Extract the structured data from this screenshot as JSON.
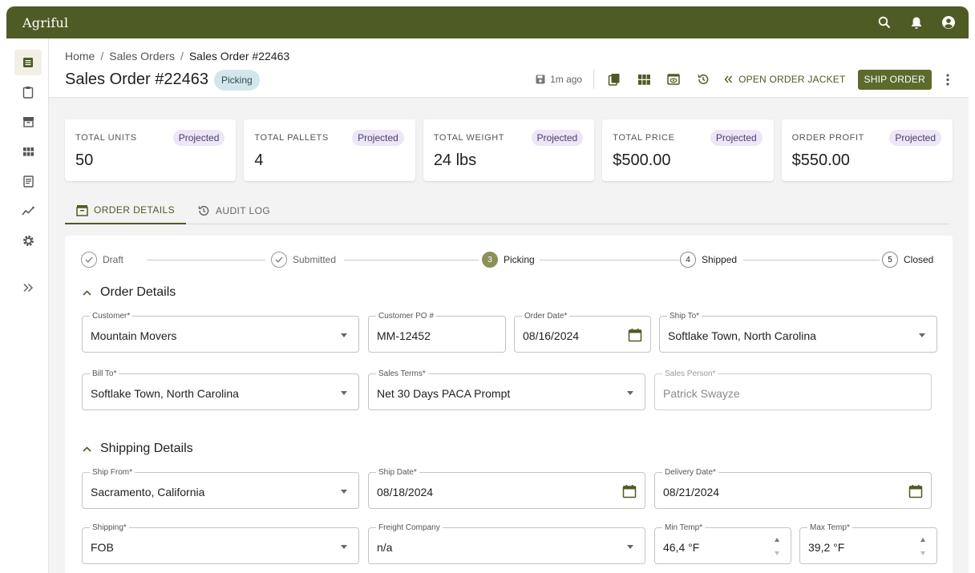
{
  "app": {
    "brand": "Agriful"
  },
  "topbar": {
    "icons": [
      "search-icon",
      "bell-icon",
      "account-icon"
    ]
  },
  "siderail": {
    "items": [
      "orders-icon",
      "clipboard-icon",
      "archive-icon",
      "grid-icon",
      "receipt-icon",
      "analytics-icon",
      "settings-icon",
      "expand-icon"
    ]
  },
  "breadcrumb": {
    "home": "Home",
    "sales_orders": "Sales Orders",
    "current": "Sales Order #22463",
    "separator": "/"
  },
  "header": {
    "title": "Sales Order #22463",
    "status": "Picking",
    "saved_text": "1m ago",
    "open_jacket_label": "OPEN ORDER JACKET",
    "ship_order_label": "SHIP ORDER"
  },
  "cards": [
    {
      "label": "TOTAL UNITS",
      "chip": "Projected",
      "value": "50"
    },
    {
      "label": "TOTAL PALLETS",
      "chip": "Projected",
      "value": "4"
    },
    {
      "label": "TOTAL WEIGHT",
      "chip": "Projected",
      "value": "24 lbs"
    },
    {
      "label": "TOTAL PRICE",
      "chip": "Projected",
      "value": "$500.00"
    },
    {
      "label": "ORDER PROFIT",
      "chip": "Projected",
      "value": "$550.00"
    }
  ],
  "tabs": {
    "order_details": "ORDER DETAILS",
    "audit_log": "AUDIT LOG"
  },
  "stepper": {
    "steps": [
      {
        "label": "Draft",
        "marker": ""
      },
      {
        "label": "Submitted",
        "marker": ""
      },
      {
        "label": "Picking",
        "marker": "3"
      },
      {
        "label": "Shipped",
        "marker": "4"
      },
      {
        "label": "Closed",
        "marker": "5"
      }
    ]
  },
  "order_details": {
    "title": "Order Details",
    "customer": {
      "label": "Customer*",
      "value": "Mountain Movers"
    },
    "customer_po": {
      "label": "Customer PO #",
      "value": "MM-12452"
    },
    "order_date": {
      "label": "Order Date*",
      "value": "08/16/2024"
    },
    "ship_to": {
      "label": "Ship To*",
      "value": "Softlake Town, North Carolina"
    },
    "bill_to": {
      "label": "Bill To*",
      "value": "Softlake Town, North Carolina"
    },
    "sales_terms": {
      "label": "Sales Terms*",
      "value": "Net 30 Days PACA Prompt"
    },
    "sales_person": {
      "label": "Sales Person*",
      "value": "Patrick Swayze"
    }
  },
  "shipping_details": {
    "title": "Shipping Details",
    "ship_from": {
      "label": "Ship From*",
      "value": "Sacramento, California"
    },
    "ship_date": {
      "label": "Ship Date*",
      "value": "08/18/2024"
    },
    "delivery_date": {
      "label": "Delivery Date*",
      "value": "08/21/2024"
    },
    "shipping": {
      "label": "Shipping*",
      "value": "FOB"
    },
    "freight_company": {
      "label": "Freight Company",
      "value": "n/a"
    },
    "min_temp": {
      "label": "Min Temp*",
      "value": "46,4 °F"
    },
    "max_temp": {
      "label": "Max Temp*",
      "value": "39,2 °F"
    }
  },
  "colors": {
    "brand": "#4e5b24",
    "ship_button": "#5c6a2c",
    "status_chip": "#d3e6ec",
    "projected_chip": "#ece6f6",
    "step_active": "#8d9157"
  }
}
